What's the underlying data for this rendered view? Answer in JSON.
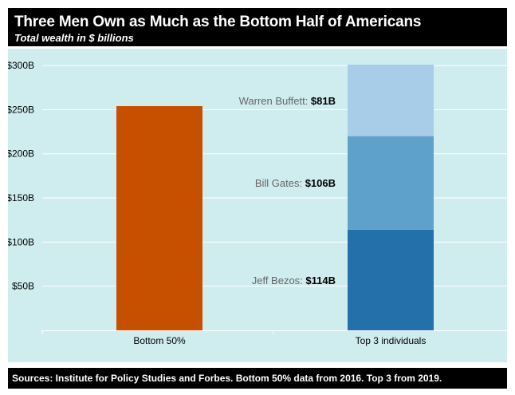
{
  "header": {
    "title": "Three Men Own as Much as the Bottom Half of Americans",
    "subtitle": "Total wealth in $ billions"
  },
  "footer": {
    "source": "Sources: Institute for Policy Studies and Forbes. Bottom 50% data from 2016. Top 3 from 2019."
  },
  "colors": {
    "background": "#cfecef",
    "bottom50": "#c75000",
    "bezos": "#2470ab",
    "gates": "#5ea2cc",
    "buffett": "#a7cde8",
    "gridline": "#ffffff",
    "annotation_name": "#666666",
    "annotation_value": "#000000"
  },
  "chart_data": {
    "type": "bar",
    "stacked": true,
    "categories": [
      "Bottom 50%",
      "Top 3 individuals"
    ],
    "series": [
      {
        "name": "Bottom 50%",
        "values": [
          254,
          0
        ],
        "color_key": "bottom50"
      },
      {
        "name": "Jeff Bezos",
        "values": [
          0,
          114
        ],
        "color_key": "bezos"
      },
      {
        "name": "Bill Gates",
        "values": [
          0,
          106
        ],
        "color_key": "gates"
      },
      {
        "name": "Warren Buffett",
        "values": [
          0,
          81
        ],
        "color_key": "buffett"
      }
    ],
    "annotations": [
      {
        "name": "Jeff Bezos: ",
        "value": "$114B"
      },
      {
        "name": "Bill Gates: ",
        "value": "$106B"
      },
      {
        "name": "Warren Buffett: ",
        "value": "$81B"
      }
    ],
    "ytick_labels": [
      "$50B",
      "$100B",
      "$150B",
      "$200B",
      "$250B",
      "$300B"
    ],
    "yticks": [
      50,
      100,
      150,
      200,
      250,
      300
    ],
    "ylim": [
      0,
      301
    ],
    "grid": true,
    "xlabel": "",
    "ylabel": ""
  }
}
